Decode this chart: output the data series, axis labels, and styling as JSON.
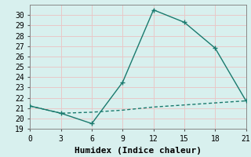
{
  "xlabel": "Humidex (Indice chaleur)",
  "ylabel": "",
  "bg_color": "#d8f0ee",
  "grid_color": "#e8c8c8",
  "line_color": "#1a7a6e",
  "x_solid": [
    0,
    3,
    6,
    9,
    12,
    15,
    18,
    21
  ],
  "y_solid": [
    21.2,
    20.5,
    19.5,
    23.5,
    30.5,
    29.3,
    26.8,
    21.7
  ],
  "x_dashed": [
    0,
    3,
    6,
    9,
    12,
    15,
    18,
    21
  ],
  "y_dashed": [
    21.2,
    20.5,
    20.6,
    20.8,
    21.1,
    21.3,
    21.5,
    21.7
  ],
  "xlim": [
    0,
    21
  ],
  "ylim": [
    19,
    31
  ],
  "xticks": [
    0,
    3,
    6,
    9,
    12,
    15,
    18,
    21
  ],
  "yticks": [
    19,
    20,
    21,
    22,
    23,
    24,
    25,
    26,
    27,
    28,
    29,
    30
  ],
  "marker": "+",
  "markersize": 5,
  "linewidth": 1.0,
  "tick_fontsize": 7,
  "label_fontsize": 8
}
